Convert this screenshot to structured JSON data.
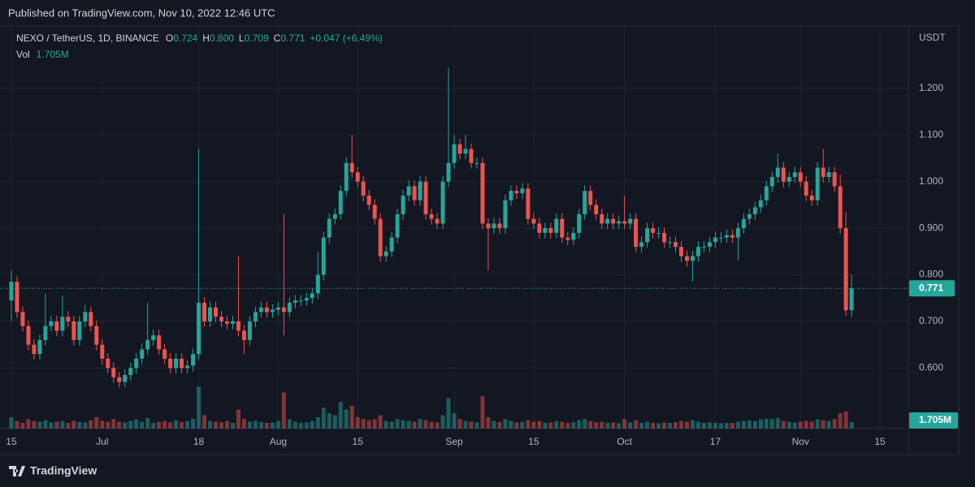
{
  "chart_data": {
    "type": "candlestick",
    "publisher": "Published on TradingView.com, Nov 10, 2022 12:46 UTC",
    "symbol": "NEXO / TetherUS, 1D, BINANCE",
    "legend_keys": [
      "O",
      "H",
      "L",
      "C"
    ],
    "last_labels": {
      "open": "0.724",
      "high": "0.800",
      "low": "0.709",
      "close": "0.771"
    },
    "change": "+0.047 (+6.49%)",
    "volume_name": "Vol",
    "last_volume_label": "1.705M",
    "currency": "USDT",
    "brand": "TradingView",
    "up_color": "#26a69a",
    "down_color": "#ef5350",
    "grid": true,
    "x": [
      "2022-06-15",
      "2022-06-16",
      "2022-06-17",
      "2022-06-18",
      "2022-06-19",
      "2022-06-20",
      "2022-06-21",
      "2022-06-22",
      "2022-06-23",
      "2022-06-24",
      "2022-06-25",
      "2022-06-26",
      "2022-06-27",
      "2022-06-28",
      "2022-06-29",
      "2022-06-30",
      "2022-07-01",
      "2022-07-02",
      "2022-07-03",
      "2022-07-04",
      "2022-07-05",
      "2022-07-06",
      "2022-07-07",
      "2022-07-08",
      "2022-07-09",
      "2022-07-10",
      "2022-07-11",
      "2022-07-12",
      "2022-07-13",
      "2022-07-14",
      "2022-07-15",
      "2022-07-16",
      "2022-07-17",
      "2022-07-18",
      "2022-07-19",
      "2022-07-20",
      "2022-07-21",
      "2022-07-22",
      "2022-07-23",
      "2022-07-24",
      "2022-07-25",
      "2022-07-26",
      "2022-07-27",
      "2022-07-28",
      "2022-07-29",
      "2022-07-30",
      "2022-07-31",
      "2022-08-01",
      "2022-08-02",
      "2022-08-03",
      "2022-08-04",
      "2022-08-05",
      "2022-08-06",
      "2022-08-07",
      "2022-08-08",
      "2022-08-09",
      "2022-08-10",
      "2022-08-11",
      "2022-08-12",
      "2022-08-13",
      "2022-08-14",
      "2022-08-15",
      "2022-08-16",
      "2022-08-17",
      "2022-08-18",
      "2022-08-19",
      "2022-08-20",
      "2022-08-21",
      "2022-08-22",
      "2022-08-23",
      "2022-08-24",
      "2022-08-25",
      "2022-08-26",
      "2022-08-27",
      "2022-08-28",
      "2022-08-29",
      "2022-08-30",
      "2022-08-31",
      "2022-09-01",
      "2022-09-02",
      "2022-09-03",
      "2022-09-04",
      "2022-09-05",
      "2022-09-06",
      "2022-09-07",
      "2022-09-08",
      "2022-09-09",
      "2022-09-10",
      "2022-09-11",
      "2022-09-12",
      "2022-09-13",
      "2022-09-14",
      "2022-09-15",
      "2022-09-16",
      "2022-09-17",
      "2022-09-18",
      "2022-09-19",
      "2022-09-20",
      "2022-09-21",
      "2022-09-22",
      "2022-09-23",
      "2022-09-24",
      "2022-09-25",
      "2022-09-26",
      "2022-09-27",
      "2022-09-28",
      "2022-09-29",
      "2022-09-30",
      "2022-10-01",
      "2022-10-02",
      "2022-10-03",
      "2022-10-04",
      "2022-10-05",
      "2022-10-06",
      "2022-10-07",
      "2022-10-08",
      "2022-10-09",
      "2022-10-10",
      "2022-10-11",
      "2022-10-12",
      "2022-10-13",
      "2022-10-14",
      "2022-10-15",
      "2022-10-16",
      "2022-10-17",
      "2022-10-18",
      "2022-10-19",
      "2022-10-20",
      "2022-10-21",
      "2022-10-22",
      "2022-10-23",
      "2022-10-24",
      "2022-10-25",
      "2022-10-26",
      "2022-10-27",
      "2022-10-28",
      "2022-10-29",
      "2022-10-30",
      "2022-10-31",
      "2022-11-01",
      "2022-11-02",
      "2022-11-03",
      "2022-11-04",
      "2022-11-05",
      "2022-11-06",
      "2022-11-07",
      "2022-11-08",
      "2022-11-09",
      "2022-11-10"
    ],
    "open": [
      0.745,
      0.785,
      0.72,
      0.69,
      0.65,
      0.63,
      0.66,
      0.69,
      0.7,
      0.68,
      0.71,
      0.7,
      0.66,
      0.7,
      0.72,
      0.69,
      0.65,
      0.62,
      0.6,
      0.58,
      0.57,
      0.585,
      0.6,
      0.62,
      0.64,
      0.66,
      0.67,
      0.64,
      0.62,
      0.6,
      0.62,
      0.6,
      0.605,
      0.63,
      0.74,
      0.7,
      0.73,
      0.71,
      0.7,
      0.695,
      0.7,
      0.68,
      0.66,
      0.7,
      0.72,
      0.73,
      0.72,
      0.725,
      0.73,
      0.72,
      0.74,
      0.745,
      0.745,
      0.75,
      0.76,
      0.8,
      0.88,
      0.92,
      0.93,
      0.98,
      1.04,
      1.02,
      1.0,
      0.97,
      0.95,
      0.92,
      0.84,
      0.85,
      0.88,
      0.93,
      0.97,
      0.99,
      0.96,
      1.0,
      0.93,
      0.92,
      0.91,
      1.0,
      1.04,
      1.08,
      1.06,
      1.07,
      1.04,
      1.04,
      0.91,
      0.9,
      0.91,
      0.9,
      0.96,
      0.98,
      0.975,
      0.985,
      0.92,
      0.91,
      0.89,
      0.9,
      0.89,
      0.92,
      0.88,
      0.875,
      0.89,
      0.93,
      0.98,
      0.95,
      0.93,
      0.91,
      0.92,
      0.91,
      0.915,
      0.91,
      0.92,
      0.86,
      0.87,
      0.9,
      0.89,
      0.89,
      0.87,
      0.87,
      0.86,
      0.84,
      0.83,
      0.84,
      0.86,
      0.86,
      0.87,
      0.88,
      0.88,
      0.885,
      0.88,
      0.9,
      0.92,
      0.93,
      0.945,
      0.96,
      0.99,
      1.01,
      1.03,
      1.0,
      1.01,
      1.02,
      1.0,
      0.97,
      0.96,
      1.03,
      1.01,
      1.02,
      0.99,
      0.9,
      0.724
    ],
    "high": [
      0.81,
      0.797,
      0.732,
      0.702,
      0.662,
      0.672,
      0.76,
      0.712,
      0.712,
      0.755,
      0.722,
      0.712,
      0.712,
      0.735,
      0.732,
      0.702,
      0.662,
      0.632,
      0.612,
      0.592,
      0.597,
      0.612,
      0.632,
      0.652,
      0.74,
      0.682,
      0.682,
      0.652,
      0.632,
      0.632,
      0.632,
      0.617,
      0.642,
      1.07,
      0.752,
      0.742,
      0.742,
      0.722,
      0.712,
      0.712,
      0.84,
      0.692,
      0.712,
      0.732,
      0.742,
      0.742,
      0.737,
      0.742,
      0.93,
      0.752,
      0.757,
      0.757,
      0.762,
      0.772,
      0.85,
      0.892,
      0.932,
      0.942,
      0.992,
      1.052,
      1.1,
      1.032,
      1.012,
      0.982,
      0.962,
      0.932,
      0.862,
      0.892,
      0.942,
      0.982,
      1.002,
      1.002,
      1.012,
      1.012,
      0.942,
      0.932,
      1.012,
      1.245,
      1.1,
      1.092,
      1.1,
      1.082,
      1.052,
      1.052,
      0.922,
      0.922,
      0.922,
      0.972,
      0.992,
      0.992,
      0.997,
      0.997,
      0.932,
      0.922,
      0.912,
      0.912,
      0.932,
      0.932,
      0.892,
      0.902,
      0.942,
      0.992,
      0.992,
      0.962,
      0.942,
      0.932,
      0.932,
      0.927,
      0.97,
      0.932,
      0.932,
      0.882,
      0.912,
      0.912,
      0.902,
      0.902,
      0.882,
      0.882,
      0.872,
      0.852,
      0.852,
      0.872,
      0.872,
      0.882,
      0.892,
      0.892,
      0.897,
      0.897,
      0.912,
      0.932,
      0.942,
      0.957,
      0.972,
      1.002,
      1.022,
      1.06,
      1.042,
      1.022,
      1.032,
      1.032,
      1.012,
      0.982,
      1.042,
      1.07,
      1.032,
      1.032,
      1.015,
      0.935,
      0.8
    ],
    "low": [
      0.7,
      0.708,
      0.678,
      0.638,
      0.618,
      0.618,
      0.648,
      0.678,
      0.668,
      0.668,
      0.688,
      0.648,
      0.648,
      0.688,
      0.678,
      0.638,
      0.608,
      0.588,
      0.568,
      0.558,
      0.558,
      0.573,
      0.588,
      0.608,
      0.628,
      0.648,
      0.628,
      0.608,
      0.588,
      0.588,
      0.588,
      0.588,
      0.593,
      0.618,
      0.688,
      0.688,
      0.698,
      0.688,
      0.683,
      0.683,
      0.668,
      0.63,
      0.648,
      0.688,
      0.708,
      0.708,
      0.708,
      0.713,
      0.67,
      0.708,
      0.728,
      0.733,
      0.733,
      0.738,
      0.748,
      0.788,
      0.868,
      0.908,
      0.918,
      0.968,
      1.008,
      0.988,
      0.958,
      0.938,
      0.908,
      0.828,
      0.828,
      0.838,
      0.868,
      0.918,
      0.958,
      0.948,
      0.948,
      0.918,
      0.908,
      0.898,
      0.898,
      0.988,
      1.028,
      1.048,
      1.048,
      1.028,
      1.028,
      0.898,
      0.81,
      0.888,
      0.888,
      0.888,
      0.948,
      0.963,
      0.963,
      0.908,
      0.898,
      0.878,
      0.878,
      0.878,
      0.878,
      0.868,
      0.863,
      0.863,
      0.878,
      0.918,
      0.938,
      0.918,
      0.898,
      0.898,
      0.898,
      0.898,
      0.898,
      0.898,
      0.848,
      0.848,
      0.858,
      0.878,
      0.878,
      0.858,
      0.858,
      0.848,
      0.828,
      0.818,
      0.785,
      0.828,
      0.848,
      0.848,
      0.858,
      0.868,
      0.868,
      0.868,
      0.83,
      0.888,
      0.908,
      0.918,
      0.933,
      0.948,
      0.978,
      0.998,
      0.988,
      0.988,
      0.998,
      0.988,
      0.958,
      0.948,
      0.948,
      0.998,
      0.998,
      0.978,
      0.888,
      0.712,
      0.709
    ],
    "close": [
      0.785,
      0.72,
      0.69,
      0.65,
      0.63,
      0.66,
      0.69,
      0.7,
      0.68,
      0.71,
      0.7,
      0.66,
      0.7,
      0.72,
      0.69,
      0.65,
      0.62,
      0.6,
      0.58,
      0.57,
      0.585,
      0.6,
      0.62,
      0.64,
      0.66,
      0.67,
      0.64,
      0.62,
      0.6,
      0.62,
      0.6,
      0.605,
      0.63,
      0.74,
      0.7,
      0.73,
      0.71,
      0.7,
      0.695,
      0.7,
      0.68,
      0.66,
      0.7,
      0.72,
      0.73,
      0.72,
      0.725,
      0.73,
      0.72,
      0.74,
      0.745,
      0.745,
      0.75,
      0.76,
      0.8,
      0.88,
      0.92,
      0.93,
      0.98,
      1.04,
      1.02,
      1.0,
      0.97,
      0.95,
      0.92,
      0.84,
      0.85,
      0.88,
      0.93,
      0.97,
      0.99,
      0.96,
      1.0,
      0.93,
      0.92,
      0.91,
      1.0,
      1.04,
      1.08,
      1.06,
      1.07,
      1.04,
      1.04,
      0.91,
      0.9,
      0.91,
      0.9,
      0.96,
      0.98,
      0.975,
      0.985,
      0.92,
      0.91,
      0.89,
      0.9,
      0.89,
      0.92,
      0.88,
      0.875,
      0.89,
      0.93,
      0.98,
      0.95,
      0.93,
      0.91,
      0.92,
      0.91,
      0.915,
      0.91,
      0.92,
      0.86,
      0.87,
      0.9,
      0.89,
      0.89,
      0.87,
      0.87,
      0.86,
      0.84,
      0.83,
      0.84,
      0.86,
      0.86,
      0.87,
      0.88,
      0.88,
      0.885,
      0.88,
      0.9,
      0.92,
      0.93,
      0.945,
      0.96,
      0.99,
      1.01,
      1.03,
      1.0,
      1.01,
      1.02,
      1.0,
      0.97,
      0.96,
      1.03,
      1.01,
      1.02,
      0.99,
      0.9,
      0.724,
      0.771
    ],
    "volume": [
      3.0,
      2.0,
      1.5,
      2.5,
      2.0,
      1.8,
      2.2,
      1.6,
      1.8,
      2.0,
      1.5,
      2.0,
      1.7,
      1.6,
      2.2,
      3.0,
      2.0,
      1.8,
      2.5,
      1.8,
      1.6,
      2.0,
      2.4,
      1.8,
      2.8,
      1.5,
      1.8,
      2.0,
      1.6,
      2.2,
      1.7,
      2.0,
      2.6,
      11.0,
      3.5,
      2.0,
      1.8,
      1.6,
      2.0,
      1.5,
      5.0,
      2.5,
      1.8,
      2.0,
      1.7,
      1.5,
      1.6,
      2.0,
      9.5,
      2.4,
      1.8,
      1.5,
      1.6,
      2.0,
      3.0,
      5.5,
      4.0,
      3.5,
      7.0,
      5.0,
      6.0,
      3.0,
      2.5,
      2.2,
      2.5,
      3.5,
      2.0,
      1.8,
      2.5,
      2.2,
      2.0,
      1.8,
      2.5,
      2.2,
      1.8,
      1.6,
      3.5,
      8.0,
      4.0,
      2.5,
      2.0,
      1.8,
      1.6,
      8.5,
      3.0,
      2.0,
      1.7,
      2.5,
      2.0,
      1.6,
      1.8,
      2.2,
      1.8,
      2.0,
      1.5,
      1.6,
      2.0,
      1.8,
      1.5,
      1.7,
      2.2,
      2.5,
      2.0,
      1.6,
      1.8,
      1.5,
      1.6,
      1.4,
      2.5,
      1.6,
      2.2,
      1.5,
      1.8,
      1.5,
      1.4,
      1.6,
      1.5,
      1.7,
      2.0,
      1.8,
      2.2,
      1.8,
      1.5,
      1.6,
      1.5,
      1.4,
      1.5,
      1.5,
      1.8,
      2.0,
      2.2,
      2.0,
      2.4,
      2.6,
      2.5,
      2.8,
      2.0,
      1.8,
      1.6,
      1.8,
      2.0,
      1.8,
      2.4,
      2.2,
      2.0,
      2.5,
      4.0,
      4.5,
      1.705
    ],
    "vlim": [
      0,
      106
    ],
    "xlim": [
      "2022-06-13",
      "2022-11-20"
    ],
    "xticks": [
      {
        "value": "2022-06-15",
        "label": "15"
      },
      {
        "value": "2022-07-01",
        "label": "Jul"
      },
      {
        "value": "2022-07-18",
        "label": "18"
      },
      {
        "value": "2022-08-01",
        "label": "Aug"
      },
      {
        "value": "2022-08-15",
        "label": "15"
      },
      {
        "value": "2022-09-01",
        "label": "Sep"
      },
      {
        "value": "2022-09-15",
        "label": "15"
      },
      {
        "value": "2022-10-01",
        "label": "Oct"
      },
      {
        "value": "2022-10-17",
        "label": "17"
      },
      {
        "value": "2022-11-01",
        "label": "Nov"
      },
      {
        "value": "2022-11-15",
        "label": "15"
      }
    ],
    "ylim": [
      0.47,
      1.334
    ],
    "yticks": [
      {
        "value": 0.6,
        "label": "0.600"
      },
      {
        "value": 0.7,
        "label": "0.700"
      },
      {
        "value": 0.8,
        "label": "0.800"
      },
      {
        "value": 0.9,
        "label": "0.900"
      },
      {
        "value": 1.0,
        "label": "1.000"
      },
      {
        "value": 1.1,
        "label": "1.100"
      },
      {
        "value": 1.2,
        "label": "1.200"
      }
    ]
  }
}
